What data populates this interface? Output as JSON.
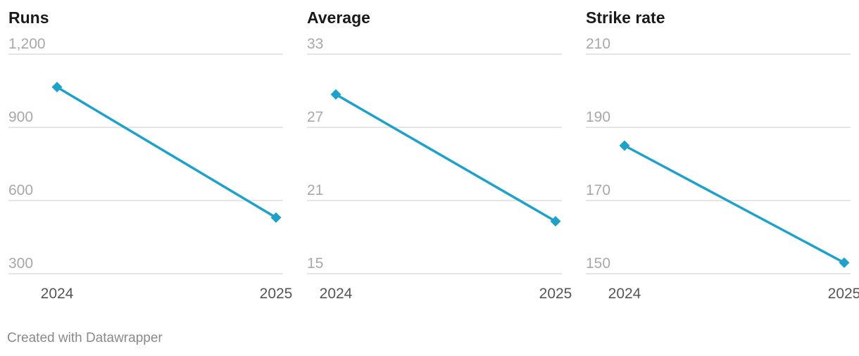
{
  "accent_color": "#1fa2c9",
  "credit": "Created with Datawrapper",
  "chart_data": [
    {
      "type": "line",
      "title": "Runs",
      "categories": [
        "2024",
        "2025"
      ],
      "series": [
        {
          "values": [
            1065,
            530
          ]
        }
      ],
      "ylim": [
        300,
        1200
      ],
      "yticks": [
        1200,
        900,
        600,
        300
      ],
      "ytick_labels": [
        "1,200",
        "900",
        "600",
        "300"
      ],
      "grid": true,
      "marker": "diamond"
    },
    {
      "type": "line",
      "title": "Average",
      "categories": [
        "2024",
        "2025"
      ],
      "series": [
        {
          "values": [
            29.7,
            19.3
          ]
        }
      ],
      "ylim": [
        15,
        33
      ],
      "yticks": [
        33,
        27,
        21,
        15
      ],
      "ytick_labels": [
        "33",
        "27",
        "21",
        "15"
      ],
      "grid": true,
      "marker": "diamond"
    },
    {
      "type": "line",
      "title": "Strike rate",
      "categories": [
        "2024",
        "2025"
      ],
      "series": [
        {
          "values": [
            185,
            153
          ]
        }
      ],
      "ylim": [
        150,
        210
      ],
      "yticks": [
        210,
        190,
        170,
        150
      ],
      "ytick_labels": [
        "210",
        "190",
        "170",
        "150"
      ],
      "grid": true,
      "marker": "diamond"
    }
  ]
}
